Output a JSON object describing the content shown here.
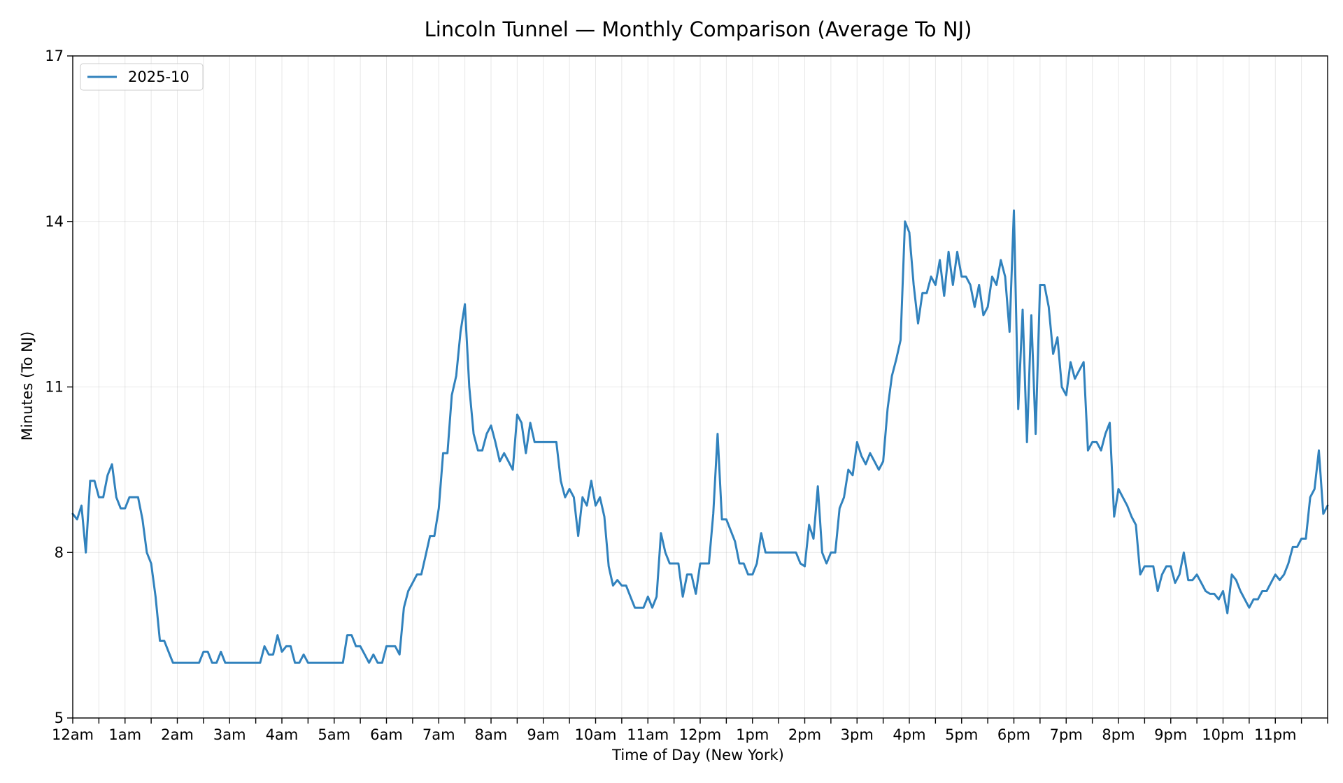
{
  "chart_data": {
    "type": "line",
    "title": "Lincoln Tunnel — Monthly Comparison (Average To NJ)",
    "xlabel": "Time of Day (New York)",
    "ylabel": "Minutes (To NJ)",
    "xlim": [
      0,
      1440
    ],
    "ylim": [
      5,
      17
    ],
    "y_ticks": [
      5,
      8,
      11,
      14,
      17
    ],
    "x_major_ticks": [
      0,
      60,
      120,
      180,
      240,
      300,
      360,
      420,
      480,
      540,
      600,
      660,
      720,
      780,
      840,
      900,
      960,
      1020,
      1080,
      1140,
      1200,
      1260,
      1320,
      1380
    ],
    "x_tick_labels": [
      "12am",
      "1am",
      "2am",
      "3am",
      "4am",
      "5am",
      "6am",
      "7am",
      "8am",
      "9am",
      "10am",
      "11am",
      "12pm",
      "1pm",
      "2pm",
      "3pm",
      "4pm",
      "5pm",
      "6pm",
      "7pm",
      "8pm",
      "9pm",
      "10pm",
      "11pm"
    ],
    "x_minor_step": 30,
    "x_unit": "minutes after midnight",
    "grid": true,
    "legend_position": "top-left",
    "series": [
      {
        "name": "2025-10",
        "color": "#3182bd",
        "points": [
          [
            0,
            8.7
          ],
          [
            5,
            8.6
          ],
          [
            10,
            8.85
          ],
          [
            15,
            8.0
          ],
          [
            20,
            9.3
          ],
          [
            25,
            9.3
          ],
          [
            30,
            9.0
          ],
          [
            35,
            9.0
          ],
          [
            40,
            9.4
          ],
          [
            45,
            9.6
          ],
          [
            50,
            9.0
          ],
          [
            55,
            8.8
          ],
          [
            60,
            8.8
          ],
          [
            65,
            9.0
          ],
          [
            70,
            9.0
          ],
          [
            75,
            9.0
          ],
          [
            80,
            8.6
          ],
          [
            85,
            8.0
          ],
          [
            90,
            7.8
          ],
          [
            95,
            7.2
          ],
          [
            100,
            6.4
          ],
          [
            105,
            6.4
          ],
          [
            110,
            6.2
          ],
          [
            115,
            6.0
          ],
          [
            120,
            6.0
          ],
          [
            125,
            6.0
          ],
          [
            130,
            6.0
          ],
          [
            135,
            6.0
          ],
          [
            140,
            6.0
          ],
          [
            145,
            6.0
          ],
          [
            150,
            6.2
          ],
          [
            155,
            6.2
          ],
          [
            160,
            6.0
          ],
          [
            165,
            6.0
          ],
          [
            170,
            6.2
          ],
          [
            175,
            6.0
          ],
          [
            180,
            6.0
          ],
          [
            185,
            6.0
          ],
          [
            190,
            6.0
          ],
          [
            195,
            6.0
          ],
          [
            200,
            6.0
          ],
          [
            205,
            6.0
          ],
          [
            210,
            6.0
          ],
          [
            215,
            6.0
          ],
          [
            220,
            6.3
          ],
          [
            225,
            6.15
          ],
          [
            230,
            6.15
          ],
          [
            235,
            6.5
          ],
          [
            240,
            6.2
          ],
          [
            245,
            6.3
          ],
          [
            250,
            6.3
          ],
          [
            255,
            6.0
          ],
          [
            260,
            6.0
          ],
          [
            265,
            6.15
          ],
          [
            270,
            6.0
          ],
          [
            275,
            6.0
          ],
          [
            280,
            6.0
          ],
          [
            285,
            6.0
          ],
          [
            290,
            6.0
          ],
          [
            295,
            6.0
          ],
          [
            300,
            6.0
          ],
          [
            305,
            6.0
          ],
          [
            310,
            6.0
          ],
          [
            315,
            6.5
          ],
          [
            320,
            6.5
          ],
          [
            325,
            6.3
          ],
          [
            330,
            6.3
          ],
          [
            335,
            6.15
          ],
          [
            340,
            6.0
          ],
          [
            345,
            6.15
          ],
          [
            350,
            6.0
          ],
          [
            355,
            6.0
          ],
          [
            360,
            6.3
          ],
          [
            365,
            6.3
          ],
          [
            370,
            6.3
          ],
          [
            375,
            6.15
          ],
          [
            380,
            7.0
          ],
          [
            385,
            7.3
          ],
          [
            390,
            7.45
          ],
          [
            395,
            7.6
          ],
          [
            400,
            7.6
          ],
          [
            405,
            7.95
          ],
          [
            410,
            8.3
          ],
          [
            415,
            8.3
          ],
          [
            420,
            8.8
          ],
          [
            425,
            9.8
          ],
          [
            430,
            9.8
          ],
          [
            435,
            10.85
          ],
          [
            440,
            11.2
          ],
          [
            445,
            12.0
          ],
          [
            450,
            12.5
          ],
          [
            455,
            11.0
          ],
          [
            460,
            10.15
          ],
          [
            465,
            9.85
          ],
          [
            470,
            9.85
          ],
          [
            475,
            10.15
          ],
          [
            480,
            10.3
          ],
          [
            485,
            10.0
          ],
          [
            490,
            9.65
          ],
          [
            495,
            9.8
          ],
          [
            500,
            9.65
          ],
          [
            505,
            9.5
          ],
          [
            510,
            10.5
          ],
          [
            515,
            10.35
          ],
          [
            520,
            9.8
          ],
          [
            525,
            10.35
          ],
          [
            530,
            10.0
          ],
          [
            535,
            10.0
          ],
          [
            540,
            10.0
          ],
          [
            545,
            10.0
          ],
          [
            550,
            10.0
          ],
          [
            555,
            10.0
          ],
          [
            560,
            9.3
          ],
          [
            565,
            9.0
          ],
          [
            570,
            9.15
          ],
          [
            575,
            9.0
          ],
          [
            580,
            8.3
          ],
          [
            585,
            9.0
          ],
          [
            590,
            8.85
          ],
          [
            595,
            9.3
          ],
          [
            600,
            8.85
          ],
          [
            605,
            9.0
          ],
          [
            610,
            8.65
          ],
          [
            615,
            7.75
          ],
          [
            620,
            7.4
          ],
          [
            625,
            7.5
          ],
          [
            630,
            7.4
          ],
          [
            635,
            7.4
          ],
          [
            640,
            7.2
          ],
          [
            645,
            7.0
          ],
          [
            650,
            7.0
          ],
          [
            655,
            7.0
          ],
          [
            660,
            7.2
          ],
          [
            665,
            7.0
          ],
          [
            670,
            7.2
          ],
          [
            675,
            8.35
          ],
          [
            680,
            8.0
          ],
          [
            685,
            7.8
          ],
          [
            690,
            7.8
          ],
          [
            695,
            7.8
          ],
          [
            700,
            7.2
          ],
          [
            705,
            7.6
          ],
          [
            710,
            7.6
          ],
          [
            715,
            7.25
          ],
          [
            720,
            7.8
          ],
          [
            725,
            7.8
          ],
          [
            730,
            7.8
          ],
          [
            735,
            8.7
          ],
          [
            740,
            10.15
          ],
          [
            745,
            8.6
          ],
          [
            750,
            8.6
          ],
          [
            755,
            8.4
          ],
          [
            760,
            8.2
          ],
          [
            765,
            7.8
          ],
          [
            770,
            7.8
          ],
          [
            775,
            7.6
          ],
          [
            780,
            7.6
          ],
          [
            785,
            7.8
          ],
          [
            790,
            8.35
          ],
          [
            795,
            8.0
          ],
          [
            800,
            8.0
          ],
          [
            805,
            8.0
          ],
          [
            810,
            8.0
          ],
          [
            815,
            8.0
          ],
          [
            820,
            8.0
          ],
          [
            825,
            8.0
          ],
          [
            830,
            8.0
          ],
          [
            835,
            7.8
          ],
          [
            840,
            7.75
          ],
          [
            845,
            8.5
          ],
          [
            850,
            8.25
          ],
          [
            855,
            9.2
          ],
          [
            860,
            8.0
          ],
          [
            865,
            7.8
          ],
          [
            870,
            8.0
          ],
          [
            875,
            8.0
          ],
          [
            880,
            8.8
          ],
          [
            885,
            9.0
          ],
          [
            890,
            9.5
          ],
          [
            895,
            9.4
          ],
          [
            900,
            10.0
          ],
          [
            905,
            9.75
          ],
          [
            910,
            9.6
          ],
          [
            915,
            9.8
          ],
          [
            920,
            9.65
          ],
          [
            925,
            9.5
          ],
          [
            930,
            9.65
          ],
          [
            935,
            10.6
          ],
          [
            940,
            11.2
          ],
          [
            945,
            11.5
          ],
          [
            950,
            11.85
          ],
          [
            955,
            14.0
          ],
          [
            960,
            13.8
          ],
          [
            965,
            12.85
          ],
          [
            970,
            12.15
          ],
          [
            975,
            12.7
          ],
          [
            980,
            12.7
          ],
          [
            985,
            13.0
          ],
          [
            990,
            12.85
          ],
          [
            995,
            13.3
          ],
          [
            1000,
            12.65
          ],
          [
            1005,
            13.45
          ],
          [
            1010,
            12.85
          ],
          [
            1015,
            13.45
          ],
          [
            1020,
            13.0
          ],
          [
            1025,
            13.0
          ],
          [
            1030,
            12.85
          ],
          [
            1035,
            12.45
          ],
          [
            1040,
            12.85
          ],
          [
            1045,
            12.3
          ],
          [
            1050,
            12.45
          ],
          [
            1055,
            13.0
          ],
          [
            1060,
            12.85
          ],
          [
            1065,
            13.3
          ],
          [
            1070,
            13.0
          ],
          [
            1075,
            12.0
          ],
          [
            1080,
            14.2
          ],
          [
            1085,
            10.6
          ],
          [
            1090,
            12.4
          ],
          [
            1095,
            10.0
          ],
          [
            1100,
            12.3
          ],
          [
            1105,
            10.15
          ],
          [
            1110,
            12.85
          ],
          [
            1115,
            12.85
          ],
          [
            1120,
            12.45
          ],
          [
            1125,
            11.6
          ],
          [
            1130,
            11.9
          ],
          [
            1135,
            11.0
          ],
          [
            1140,
            10.85
          ],
          [
            1145,
            11.45
          ],
          [
            1150,
            11.15
          ],
          [
            1155,
            11.3
          ],
          [
            1160,
            11.45
          ],
          [
            1165,
            9.85
          ],
          [
            1170,
            10.0
          ],
          [
            1175,
            10.0
          ],
          [
            1180,
            9.85
          ],
          [
            1185,
            10.15
          ],
          [
            1190,
            10.35
          ],
          [
            1195,
            8.65
          ],
          [
            1200,
            9.15
          ],
          [
            1205,
            9.0
          ],
          [
            1210,
            8.85
          ],
          [
            1215,
            8.65
          ],
          [
            1220,
            8.5
          ],
          [
            1225,
            7.6
          ],
          [
            1230,
            7.75
          ],
          [
            1235,
            7.75
          ],
          [
            1240,
            7.75
          ],
          [
            1245,
            7.3
          ],
          [
            1250,
            7.6
          ],
          [
            1255,
            7.75
          ],
          [
            1260,
            7.75
          ],
          [
            1265,
            7.45
          ],
          [
            1270,
            7.6
          ],
          [
            1275,
            8.0
          ],
          [
            1280,
            7.5
          ],
          [
            1285,
            7.5
          ],
          [
            1290,
            7.6
          ],
          [
            1295,
            7.45
          ],
          [
            1300,
            7.3
          ],
          [
            1305,
            7.25
          ],
          [
            1310,
            7.25
          ],
          [
            1315,
            7.15
          ],
          [
            1320,
            7.3
          ],
          [
            1325,
            6.9
          ],
          [
            1330,
            7.6
          ],
          [
            1335,
            7.5
          ],
          [
            1340,
            7.3
          ],
          [
            1345,
            7.15
          ],
          [
            1350,
            7.0
          ],
          [
            1355,
            7.15
          ],
          [
            1360,
            7.15
          ],
          [
            1365,
            7.3
          ],
          [
            1370,
            7.3
          ],
          [
            1375,
            7.45
          ],
          [
            1380,
            7.6
          ],
          [
            1385,
            7.5
          ],
          [
            1390,
            7.6
          ],
          [
            1395,
            7.8
          ],
          [
            1400,
            8.1
          ],
          [
            1405,
            8.1
          ],
          [
            1410,
            8.25
          ],
          [
            1415,
            8.25
          ],
          [
            1420,
            9.0
          ],
          [
            1425,
            9.15
          ],
          [
            1430,
            9.85
          ],
          [
            1435,
            8.7
          ],
          [
            1440,
            8.85
          ]
        ]
      }
    ]
  }
}
